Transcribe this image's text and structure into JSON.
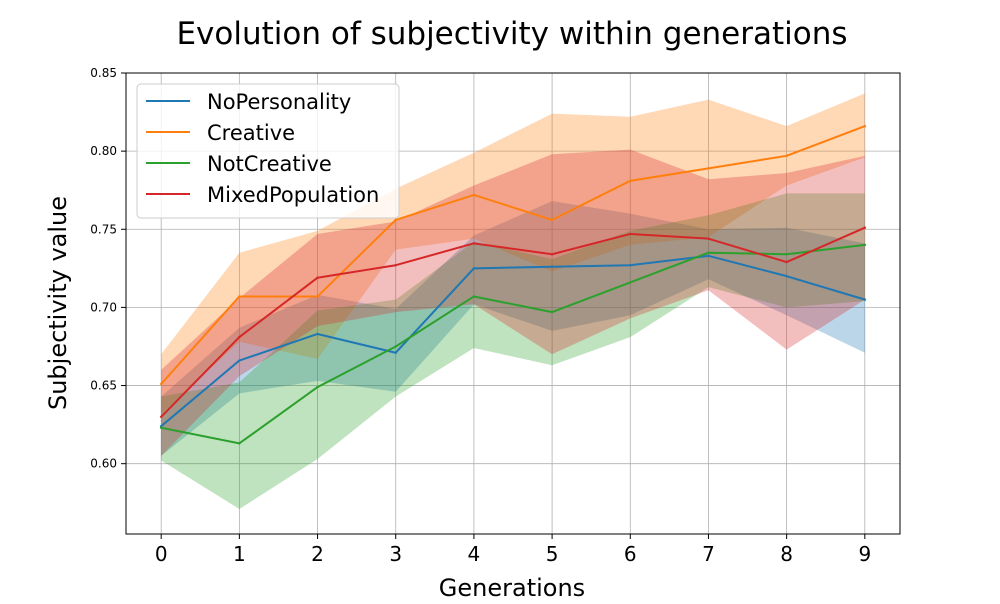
{
  "chart_data": {
    "type": "line",
    "title": "Evolution of subjectivity within generations",
    "xlabel": "Generations",
    "ylabel": "Subjectivity value",
    "x": [
      0,
      1,
      2,
      3,
      4,
      5,
      6,
      7,
      8,
      9
    ],
    "xlim": [
      -0.45,
      9.45
    ],
    "ylim": [
      0.555,
      0.85
    ],
    "xticks": [
      "0",
      "1",
      "2",
      "3",
      "4",
      "5",
      "6",
      "7",
      "8",
      "9"
    ],
    "yticks": [
      "0.60",
      "0.65",
      "0.70",
      "0.75",
      "0.80",
      "0.85"
    ],
    "grid": true,
    "legend_position": "upper-left",
    "series": [
      {
        "name": "NoPersonality",
        "color": "#1f77b4",
        "values": [
          0.624,
          0.666,
          0.683,
          0.671,
          0.725,
          0.726,
          0.727,
          0.733,
          0.72,
          0.705
        ],
        "lower": [
          0.605,
          0.645,
          0.653,
          0.646,
          0.702,
          0.685,
          0.695,
          0.718,
          0.695,
          0.671
        ],
        "upper": [
          0.643,
          0.687,
          0.708,
          0.699,
          0.746,
          0.768,
          0.76,
          0.75,
          0.751,
          0.741
        ]
      },
      {
        "name": "Creative",
        "color": "#ff7f0e",
        "values": [
          0.651,
          0.707,
          0.707,
          0.756,
          0.772,
          0.756,
          0.781,
          0.789,
          0.797,
          0.816
        ],
        "lower": [
          0.632,
          0.678,
          0.667,
          0.737,
          0.744,
          0.723,
          0.74,
          0.745,
          0.778,
          0.796
        ],
        "upper": [
          0.67,
          0.735,
          0.749,
          0.776,
          0.799,
          0.824,
          0.822,
          0.833,
          0.816,
          0.837
        ]
      },
      {
        "name": "NotCreative",
        "color": "#2ca02c",
        "values": [
          0.623,
          0.613,
          0.649,
          0.675,
          0.707,
          0.697,
          0.716,
          0.735,
          0.734,
          0.74
        ],
        "lower": [
          0.602,
          0.571,
          0.603,
          0.643,
          0.674,
          0.663,
          0.681,
          0.713,
          0.7,
          0.704
        ],
        "upper": [
          0.643,
          0.652,
          0.698,
          0.705,
          0.742,
          0.731,
          0.749,
          0.759,
          0.773,
          0.773
        ]
      },
      {
        "name": "MixedPopulation",
        "color": "#d62728",
        "values": [
          0.63,
          0.681,
          0.719,
          0.727,
          0.741,
          0.734,
          0.747,
          0.744,
          0.729,
          0.751
        ],
        "lower": [
          0.605,
          0.656,
          0.688,
          0.697,
          0.702,
          0.67,
          0.693,
          0.711,
          0.673,
          0.705
        ],
        "upper": [
          0.66,
          0.706,
          0.747,
          0.755,
          0.778,
          0.798,
          0.801,
          0.782,
          0.786,
          0.797
        ]
      }
    ]
  }
}
